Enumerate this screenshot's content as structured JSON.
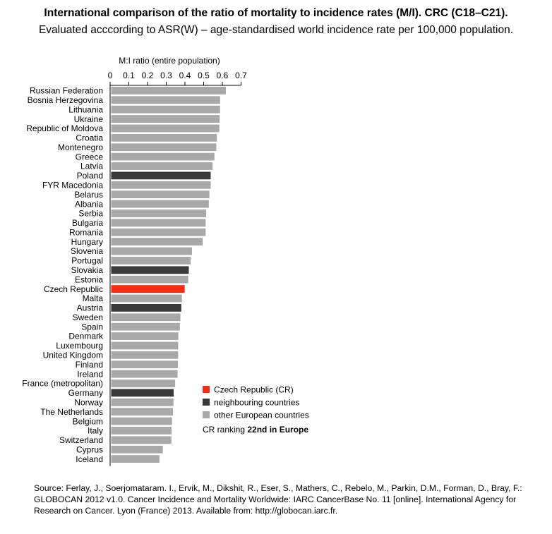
{
  "title": "International comparison of the ratio of mortality to incidence rates (M/I). CRC (C18–C21).",
  "subtitle": "Evaluated acccording to ASR(W) – age-standardised world incidence rate per 100,000 population.",
  "chart_data": {
    "type": "bar",
    "orientation": "horizontal",
    "xlabel": "M:I ratio (entire population)",
    "xlim": [
      0,
      0.7
    ],
    "ticks": [
      "0",
      "0.1",
      "0.2",
      "0.3",
      "0.4",
      "0.5",
      "0.6",
      "0.7"
    ],
    "grid": false,
    "legend_position": "lower-right",
    "categories": [
      "Russian Federation",
      "Bosnia Herzegovina",
      "Lithuania",
      "Ukraine",
      "Republic of Moldova",
      "Croatia",
      "Montenegro",
      "Greece",
      "Latvia",
      "Poland",
      "FYR Macedonia",
      "Belarus",
      "Albania",
      "Serbia",
      "Bulgaria",
      "Romania",
      "Hungary",
      "Slovenia",
      "Portugal",
      "Slovakia",
      "Estonia",
      "Czech Republic",
      "Malta",
      "Austria",
      "Sweden",
      "Spain",
      "Denmark",
      "Luxembourg",
      "United Kingdom",
      "Finland",
      "Ireland",
      "France (metropolitan)",
      "Germany",
      "Norway",
      "The Netherlands",
      "Belgium",
      "Italy",
      "Switzerland",
      "Cyprus",
      "Iceland"
    ],
    "values": [
      0.613,
      0.582,
      0.582,
      0.58,
      0.578,
      0.565,
      0.562,
      0.552,
      0.542,
      0.532,
      0.532,
      0.525,
      0.522,
      0.508,
      0.505,
      0.505,
      0.489,
      0.432,
      0.425,
      0.415,
      0.412,
      0.393,
      0.378,
      0.375,
      0.37,
      0.367,
      0.359,
      0.358,
      0.358,
      0.357,
      0.355,
      0.342,
      0.334,
      0.333,
      0.33,
      0.325,
      0.323,
      0.322,
      0.276,
      0.258
    ],
    "groups": [
      "other",
      "other",
      "other",
      "other",
      "other",
      "other",
      "other",
      "other",
      "other",
      "neighbour",
      "other",
      "other",
      "other",
      "other",
      "other",
      "other",
      "other",
      "other",
      "other",
      "neighbour",
      "other",
      "cr",
      "other",
      "neighbour",
      "other",
      "other",
      "other",
      "other",
      "other",
      "other",
      "other",
      "other",
      "neighbour",
      "other",
      "other",
      "other",
      "other",
      "other",
      "other",
      "other"
    ],
    "colors": {
      "cr": "#fe2b14",
      "neighbour": "#3a3a3a",
      "other": "#a8a8a8"
    },
    "legend": [
      {
        "group": "cr",
        "label": "Czech Republic (CR)"
      },
      {
        "group": "neighbour",
        "label": "neighbouring countries"
      },
      {
        "group": "other",
        "label": "other European countries"
      }
    ],
    "annotation": {
      "prefix": "CR ranking ",
      "bold": "22nd in Europe"
    }
  },
  "source": "Source: Ferlay, J., Soerjomataram. I., Ervik, M., Dikshit, R., Eser, S., Mathers, C., Rebelo, M., Parkin, D.M., Forman, D., Bray, F.: GLOBOCAN 2012 v1.0. Cancer Incidence and Mortality Worldwide: IARC CancerBase No. 11 [online]. International Agency for Research on Cancer. Lyon (France) 2013. Available from: http://globocan.iarc.fr."
}
